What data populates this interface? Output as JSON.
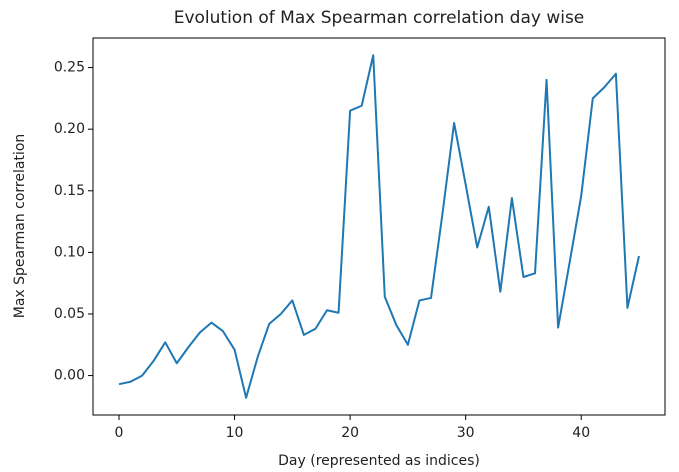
{
  "chart_data": {
    "type": "line",
    "title": "Evolution of Max Spearman correlation day wise",
    "xlabel": "Day (represented as indices)",
    "ylabel": "Max Spearman correlation",
    "x": [
      0,
      1,
      2,
      3,
      4,
      5,
      6,
      7,
      8,
      9,
      10,
      11,
      12,
      13,
      14,
      15,
      16,
      17,
      18,
      19,
      20,
      21,
      22,
      23,
      24,
      25,
      26,
      27,
      28,
      29,
      30,
      31,
      32,
      33,
      34,
      35,
      36,
      37,
      38,
      39,
      40,
      41,
      42,
      43,
      44,
      45
    ],
    "series": [
      {
        "name": "Max Spearman correlation",
        "color": "#1f77b4",
        "values": [
          -0.007,
          -0.005,
          0.0,
          0.012,
          0.027,
          0.01,
          0.023,
          0.035,
          0.043,
          0.036,
          0.021,
          -0.018,
          0.015,
          0.042,
          0.05,
          0.061,
          0.033,
          0.038,
          0.053,
          0.051,
          0.215,
          0.219,
          0.26,
          0.064,
          0.041,
          0.025,
          0.061,
          0.063,
          0.132,
          0.205,
          0.155,
          0.104,
          0.137,
          0.068,
          0.144,
          0.08,
          0.083,
          0.24,
          0.039,
          0.092,
          0.146,
          0.225,
          0.234,
          0.245,
          0.055,
          0.097
        ]
      }
    ],
    "xlim": [
      -2.25,
      47.25
    ],
    "xticks": [
      0,
      10,
      20,
      30,
      40
    ],
    "ylim": [
      -0.032,
      0.274
    ],
    "yticks": [
      {
        "value": 0,
        "label": "0.00"
      },
      0.05,
      {
        "value": 0.1,
        "label": "0.10"
      },
      0.15,
      {
        "value": 0.2,
        "label": "0.20"
      },
      0.25
    ],
    "grid": false
  }
}
